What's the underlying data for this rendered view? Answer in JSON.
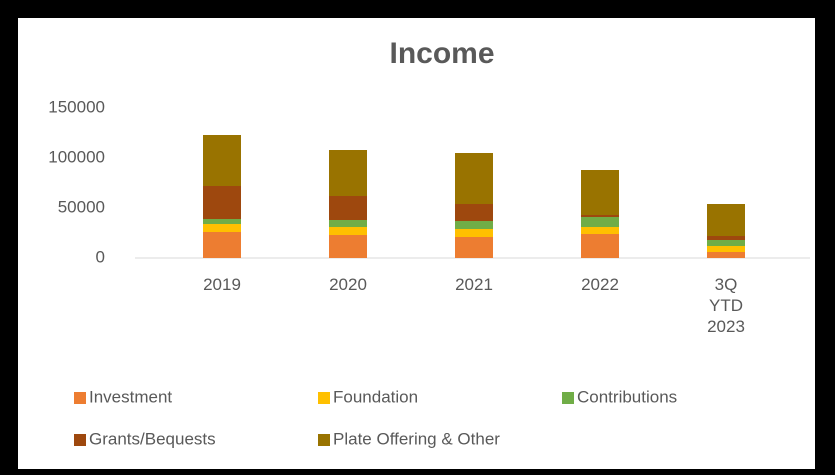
{
  "chart_data": {
    "type": "stacked_bar",
    "title": "Income",
    "categories": [
      "2019",
      "2020",
      "2021",
      "2022",
      "3Q YTD 2023"
    ],
    "series": [
      {
        "name": "Investment",
        "color": "#ED7D31",
        "values": [
          26000,
          23000,
          21000,
          24000,
          6000
        ]
      },
      {
        "name": "Foundation",
        "color": "#FFC000",
        "values": [
          8000,
          8000,
          8000,
          7000,
          6000
        ]
      },
      {
        "name": "Contributions",
        "color": "#70AD47",
        "values": [
          5000,
          7000,
          8000,
          10000,
          6000
        ]
      },
      {
        "name": "Grants/Bequests",
        "color": "#9E480E",
        "values": [
          33000,
          24000,
          17000,
          2000,
          4000
        ]
      },
      {
        "name": "Plate Offering & Other",
        "color": "#997300",
        "values": [
          51000,
          46000,
          51000,
          45000,
          32000
        ]
      }
    ],
    "ylim": [
      0,
      150000
    ],
    "yticks": [
      0,
      50000,
      100000,
      150000
    ],
    "grid": false,
    "legend": "bottom"
  }
}
